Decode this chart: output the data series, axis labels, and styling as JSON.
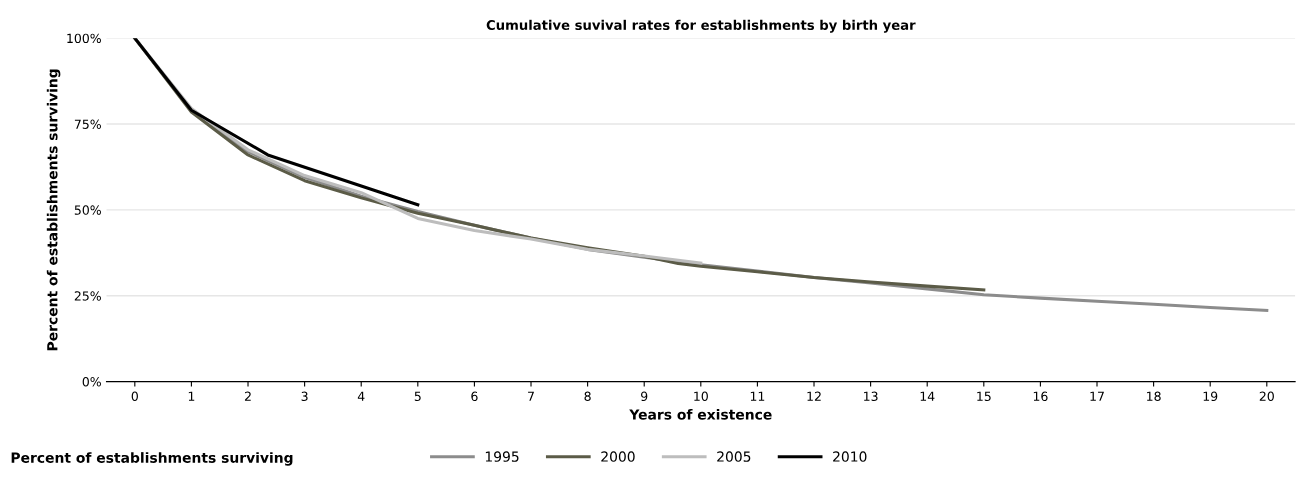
{
  "chart_data": {
    "type": "line",
    "title": "Cumulative suvival rates for establishments by birth year",
    "xlabel": "Years of existence",
    "ylabel": "Percent of establishments surviving",
    "annotations": [
      "Percent of establishments surviving"
    ],
    "xlim": [
      -0.5,
      20.5
    ],
    "xticks": [
      0,
      1,
      2,
      3,
      4,
      5,
      6,
      7,
      8,
      9,
      10,
      11,
      12,
      13,
      14,
      15,
      16,
      17,
      18,
      19,
      20
    ],
    "ylim": [
      0,
      100
    ],
    "yticks": [
      {
        "value": 0,
        "label": "0%"
      },
      {
        "value": 25,
        "label": "25%"
      },
      {
        "value": 50,
        "label": "50%"
      },
      {
        "value": 75,
        "label": "75%"
      },
      {
        "value": 100,
        "label": "100%"
      }
    ],
    "grid": "y",
    "legend": "bottom",
    "line_style": "solid",
    "series": [
      {
        "name": "1995",
        "color": "#8c8c8c",
        "x": [
          0,
          1,
          2,
          3,
          4,
          5,
          6,
          7,
          8,
          9,
          10,
          11,
          12,
          13,
          14,
          15,
          16,
          17,
          18,
          19,
          20
        ],
        "values": [
          100,
          79,
          67,
          59.5,
          54,
          49.5,
          45.5,
          41.8,
          38.5,
          36.2,
          34,
          32.2,
          30.3,
          28.7,
          27,
          25.3,
          24.3,
          23.4,
          22.5,
          21.6,
          20.7
        ]
      },
      {
        "name": "2000",
        "color": "#5b5b47",
        "x": [
          0,
          1,
          2,
          3,
          4,
          5,
          6,
          7,
          8,
          9,
          9.6,
          10,
          11,
          12,
          13,
          14,
          15
        ],
        "values": [
          100,
          78.5,
          66,
          58.5,
          53.5,
          49,
          45.5,
          41.8,
          39,
          36.5,
          34.4,
          33.6,
          32,
          30.3,
          29,
          27.8,
          26.7
        ]
      },
      {
        "name": "2005",
        "color": "#bdbdbd",
        "x": [
          0,
          1,
          2,
          3,
          4,
          5,
          6,
          7,
          8,
          9,
          10
        ],
        "values": [
          100,
          79.5,
          67.5,
          60,
          55,
          47.5,
          44,
          41.5,
          38.5,
          36.6,
          34.5
        ]
      },
      {
        "name": "2010",
        "color": "#000000",
        "x": [
          0,
          1,
          2.35,
          5
        ],
        "values": [
          100,
          79,
          66,
          51.5
        ]
      }
    ]
  }
}
